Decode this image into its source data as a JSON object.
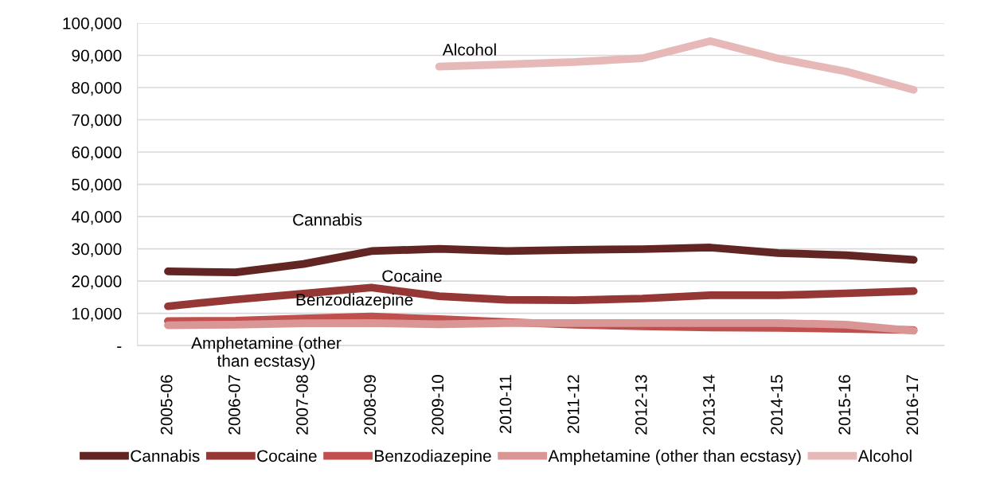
{
  "chart_data": {
    "type": "line",
    "categories": [
      "2005-06",
      "2006-07",
      "2007-08",
      "2008-09",
      "2009-10",
      "2010-11",
      "2011-12",
      "2012-13",
      "2013-14",
      "2014-15",
      "2015-16",
      "2016-17"
    ],
    "series": [
      {
        "name": "Cannabis",
        "color": "#632523",
        "values": [
          23000,
          22700,
          25300,
          29300,
          30000,
          29300,
          29700,
          29900,
          30400,
          28700,
          28000,
          26600
        ]
      },
      {
        "name": "Cocaine",
        "color": "#953735",
        "values": [
          12200,
          14300,
          16100,
          18000,
          15300,
          14200,
          14100,
          14600,
          15600,
          15600,
          16200,
          16900
        ]
      },
      {
        "name": "Benzodiazepine",
        "color": "#c0504d",
        "values": [
          7600,
          7700,
          8400,
          9000,
          8200,
          7300,
          6500,
          6000,
          5600,
          5500,
          5200,
          4800
        ]
      },
      {
        "name": "Amphetamine (other than ecstasy)",
        "color": "#d99694",
        "values": [
          6300,
          6500,
          6900,
          7000,
          6600,
          7000,
          7000,
          7000,
          7000,
          7000,
          6500,
          4600
        ]
      },
      {
        "name": "Alcohol",
        "color": "#e6b9b8",
        "values": [
          null,
          null,
          null,
          null,
          86500,
          87200,
          87900,
          89100,
          94400,
          89000,
          85000,
          79300
        ]
      }
    ],
    "ylim": [
      0,
      100000
    ],
    "yticks": [
      {
        "value": 0,
        "label": "-"
      },
      {
        "value": 10000,
        "label": "10,000"
      },
      {
        "value": 20000,
        "label": "20,000"
      },
      {
        "value": 30000,
        "label": "30,000"
      },
      {
        "value": 40000,
        "label": "40,000"
      },
      {
        "value": 50000,
        "label": "50,000"
      },
      {
        "value": 60000,
        "label": "60,000"
      },
      {
        "value": 70000,
        "label": "70,000"
      },
      {
        "value": 80000,
        "label": "80,000"
      },
      {
        "value": 90000,
        "label": "90,000"
      },
      {
        "value": 100000,
        "label": "100,000"
      }
    ],
    "annotations": [
      "Cannabis",
      "Cocaine",
      "Benzodiazepine",
      "Amphetamine (other\nthan ecstasy)",
      "Alcohol"
    ],
    "grid": "y",
    "legend": "bottom",
    "marker": "none",
    "line_style": "solid"
  }
}
